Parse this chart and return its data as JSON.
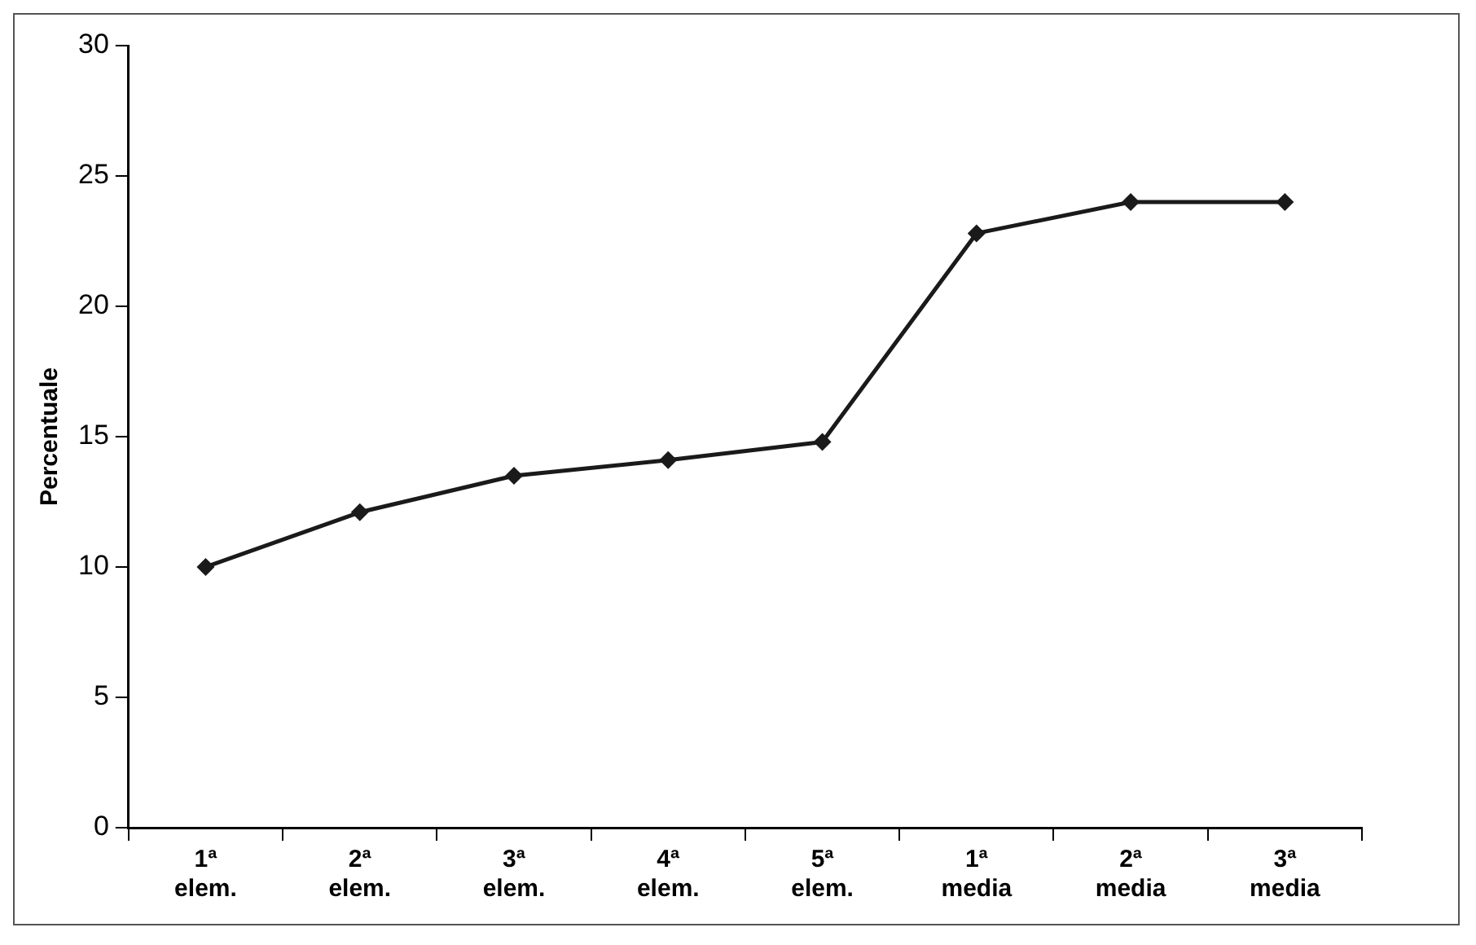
{
  "chart_data": {
    "type": "line",
    "ylabel": "Percentuale",
    "categories": [
      "1ª elem.",
      "2ª elem.",
      "3ª elem.",
      "4ª elem.",
      "5ª elem.",
      "1ª media",
      "2ª media",
      "3ª media"
    ],
    "series": [
      {
        "color": "#1a1a1a",
        "values": [
          10,
          12.1,
          13.5,
          14.1,
          14.8,
          22.8,
          24,
          24
        ]
      }
    ],
    "ylim": [
      0,
      30
    ],
    "yticks": [
      0,
      5,
      10,
      15,
      20,
      25,
      30
    ],
    "grid": false,
    "legend": false,
    "marker": "diamond",
    "line_style": "solid"
  }
}
